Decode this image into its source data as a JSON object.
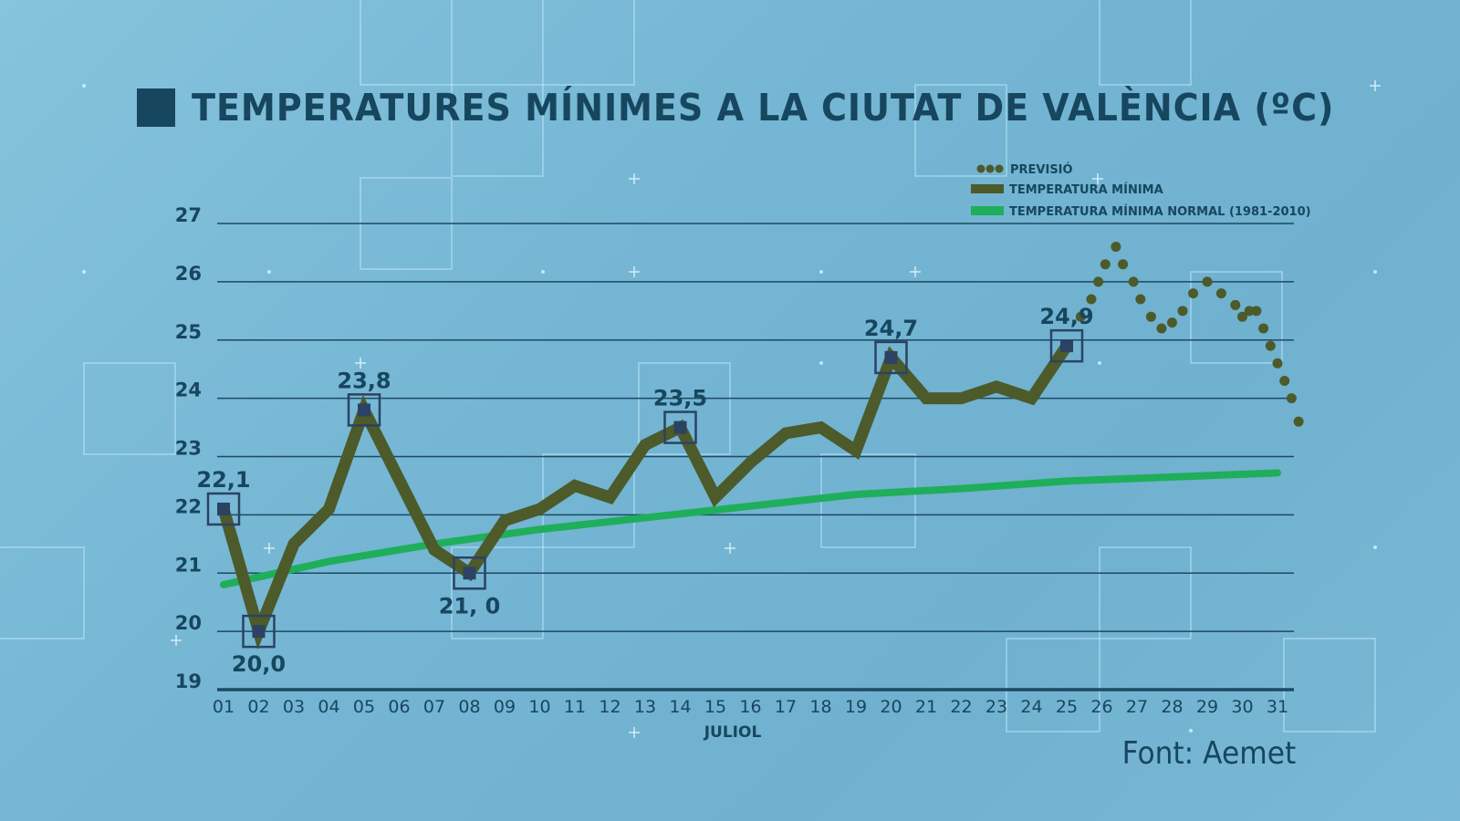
{
  "title": "TEMPERATURES MÍNIMES A LA CIUTAT DE VALÈNCIA (ºC)",
  "source": "Font: Aemet",
  "legend": {
    "forecast": "PREVISIÓ",
    "min_temp": "TEMPERATURA MÍNIMA",
    "normal": "TEMPERATURA MÍNIMA NORMAL (1981-2010)"
  },
  "colors": {
    "text": "#17465f",
    "min_temp_line": "#4d5a2a",
    "forecast_dots": "#4d5a2a",
    "normal_line": "#1fae5a",
    "gridline": "#1c4963",
    "marker": "#2c4263",
    "background": "#78b8d4"
  },
  "chart_data": {
    "type": "line",
    "title": "TEMPERATURES MÍNIMES A LA CIUTAT DE VALÈNCIA (ºC)",
    "xlabel": "JULIOL",
    "ylabel": "",
    "ylim": [
      19,
      27
    ],
    "yticks": [
      19,
      20,
      21,
      22,
      23,
      24,
      25,
      26,
      27
    ],
    "grid": true,
    "legend_position": "top-right",
    "categories": [
      "01",
      "02",
      "03",
      "04",
      "05",
      "06",
      "07",
      "08",
      "09",
      "10",
      "11",
      "12",
      "13",
      "14",
      "15",
      "16",
      "17",
      "18",
      "19",
      "20",
      "21",
      "22",
      "23",
      "24",
      "25",
      "26",
      "27",
      "28",
      "29",
      "30",
      "31"
    ],
    "series": [
      {
        "name": "TEMPERATURA MÍNIMA",
        "style": "thick-line",
        "x": [
          1,
          2,
          3,
          4,
          5,
          6,
          7,
          8,
          9,
          10,
          11,
          12,
          13,
          14,
          15,
          16,
          17,
          18,
          19,
          20,
          21,
          22,
          23,
          24,
          25
        ],
        "values": [
          22.1,
          20.0,
          21.5,
          22.1,
          23.8,
          22.6,
          21.4,
          21.0,
          21.9,
          22.1,
          22.5,
          22.3,
          23.2,
          23.5,
          22.3,
          22.9,
          23.4,
          23.5,
          23.1,
          24.7,
          24.0,
          24.0,
          24.2,
          24.0,
          24.9
        ]
      },
      {
        "name": "PREVISIÓ",
        "style": "dotted",
        "x": [
          25,
          25.4,
          25.7,
          25.9,
          26.1,
          26.4,
          26.6,
          26.9,
          27.1,
          27.4,
          27.7,
          28.0,
          28.3,
          28.6,
          29.0,
          29.4,
          29.8,
          30.0,
          30.2,
          30.4,
          30.6,
          30.8,
          31.0,
          31.2,
          31.4,
          31.6
        ],
        "values": [
          24.9,
          25.4,
          25.7,
          26.0,
          26.3,
          26.6,
          26.3,
          26.0,
          25.7,
          25.4,
          25.2,
          25.3,
          25.5,
          25.8,
          26.0,
          25.8,
          25.6,
          25.4,
          25.5,
          25.5,
          25.2,
          24.9,
          24.6,
          24.3,
          24.0,
          23.6
        ]
      },
      {
        "name": "TEMPERATURA MÍNIMA NORMAL (1981-2010)",
        "style": "line",
        "x": [
          1,
          4,
          7,
          10,
          13,
          16,
          19,
          22,
          25,
          28,
          31
        ],
        "values": [
          20.8,
          21.2,
          21.5,
          21.75,
          21.95,
          22.15,
          22.35,
          22.45,
          22.58,
          22.65,
          22.72
        ]
      }
    ],
    "annotations": [
      {
        "day": "01",
        "label": "22,1",
        "value": 22.1,
        "position": "above"
      },
      {
        "day": "02",
        "label": "20,0",
        "value": 20.0,
        "position": "below"
      },
      {
        "day": "05",
        "label": "23,8",
        "value": 23.8,
        "position": "above"
      },
      {
        "day": "08",
        "label": "21, 0",
        "value": 21.0,
        "position": "below"
      },
      {
        "day": "14",
        "label": "23,5",
        "value": 23.5,
        "position": "above"
      },
      {
        "day": "20",
        "label": "24,7",
        "value": 24.7,
        "position": "above"
      },
      {
        "day": "25",
        "label": "24,9",
        "value": 24.9,
        "position": "above"
      }
    ]
  }
}
